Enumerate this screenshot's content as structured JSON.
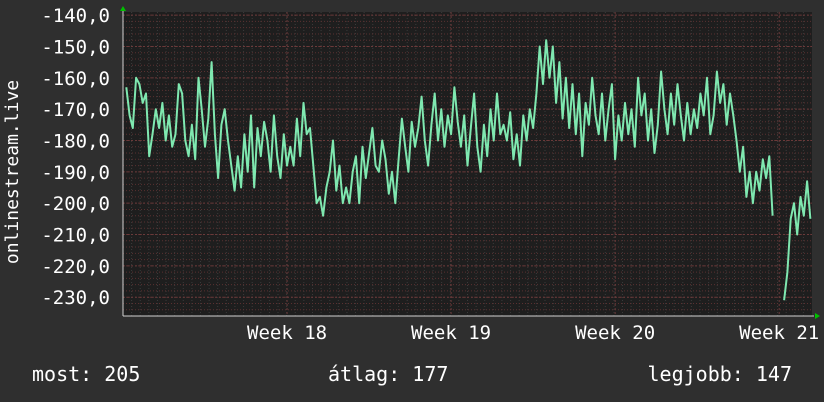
{
  "chart_data": {
    "type": "line",
    "ylabel": "onlinestream.live",
    "yticks": [
      "-140,0",
      "-150,0",
      "-160,0",
      "-170,0",
      "-180,0",
      "-190,0",
      "-200,0",
      "-210,0",
      "-220,0",
      "-230,0"
    ],
    "ytick_values": [
      -140,
      -150,
      -160,
      -170,
      -180,
      -190,
      -200,
      -210,
      -220,
      -230
    ],
    "ylim": [
      -236,
      -139
    ],
    "xticks": [
      "Week 18",
      "Week 19",
      "Week 20",
      "Week 21"
    ],
    "xtick_values": [
      18,
      19,
      20,
      21
    ],
    "xlim": [
      17.0,
      21.2
    ],
    "grid": true,
    "colors": {
      "background": "#2f2f2f",
      "plot_bg": "#1e1e1e",
      "line": "#7fe8b0",
      "grid": "#4a4a4a",
      "grid_minor_red": "#5a3030",
      "arrow": "#00c000"
    },
    "series": [
      {
        "values": [
          [
            17.02,
            -163
          ],
          [
            17.04,
            -172
          ],
          [
            17.06,
            -176
          ],
          [
            17.08,
            -160
          ],
          [
            17.1,
            -162
          ],
          [
            17.12,
            -168
          ],
          [
            17.14,
            -165
          ],
          [
            17.16,
            -185
          ],
          [
            17.18,
            -178
          ],
          [
            17.2,
            -170
          ],
          [
            17.22,
            -176
          ],
          [
            17.24,
            -168
          ],
          [
            17.26,
            -180
          ],
          [
            17.28,
            -172
          ],
          [
            17.3,
            -182
          ],
          [
            17.32,
            -178
          ],
          [
            17.34,
            -162
          ],
          [
            17.36,
            -165
          ],
          [
            17.38,
            -180
          ],
          [
            17.4,
            -185
          ],
          [
            17.42,
            -175
          ],
          [
            17.44,
            -186
          ],
          [
            17.46,
            -160
          ],
          [
            17.48,
            -170
          ],
          [
            17.5,
            -182
          ],
          [
            17.52,
            -173
          ],
          [
            17.54,
            -155
          ],
          [
            17.56,
            -178
          ],
          [
            17.58,
            -192
          ],
          [
            17.6,
            -175
          ],
          [
            17.62,
            -170
          ],
          [
            17.64,
            -180
          ],
          [
            17.66,
            -188
          ],
          [
            17.68,
            -196
          ],
          [
            17.7,
            -185
          ],
          [
            17.72,
            -195
          ],
          [
            17.74,
            -178
          ],
          [
            17.76,
            -190
          ],
          [
            17.78,
            -172
          ],
          [
            17.8,
            -195
          ],
          [
            17.82,
            -176
          ],
          [
            17.84,
            -185
          ],
          [
            17.86,
            -174
          ],
          [
            17.88,
            -180
          ],
          [
            17.9,
            -190
          ],
          [
            17.92,
            -172
          ],
          [
            17.94,
            -185
          ],
          [
            17.96,
            -192
          ],
          [
            17.98,
            -178
          ],
          [
            18.0,
            -188
          ],
          [
            18.02,
            -182
          ],
          [
            18.04,
            -188
          ],
          [
            18.06,
            -173
          ],
          [
            18.08,
            -185
          ],
          [
            18.1,
            -168
          ],
          [
            18.12,
            -178
          ],
          [
            18.14,
            -176
          ],
          [
            18.16,
            -188
          ],
          [
            18.18,
            -200
          ],
          [
            18.2,
            -198
          ],
          [
            18.22,
            -204
          ],
          [
            18.24,
            -195
          ],
          [
            18.26,
            -190
          ],
          [
            18.28,
            -180
          ],
          [
            18.3,
            -196
          ],
          [
            18.32,
            -188
          ],
          [
            18.34,
            -200
          ],
          [
            18.36,
            -195
          ],
          [
            18.38,
            -200
          ],
          [
            18.4,
            -190
          ],
          [
            18.42,
            -185
          ],
          [
            18.44,
            -200
          ],
          [
            18.46,
            -182
          ],
          [
            18.48,
            -192
          ],
          [
            18.5,
            -184
          ],
          [
            18.52,
            -176
          ],
          [
            18.54,
            -188
          ],
          [
            18.56,
            -190
          ],
          [
            18.58,
            -180
          ],
          [
            18.6,
            -186
          ],
          [
            18.62,
            -197
          ],
          [
            18.64,
            -190
          ],
          [
            18.66,
            -200
          ],
          [
            18.68,
            -186
          ],
          [
            18.7,
            -173
          ],
          [
            18.72,
            -182
          ],
          [
            18.74,
            -190
          ],
          [
            18.76,
            -174
          ],
          [
            18.78,
            -182
          ],
          [
            18.8,
            -176
          ],
          [
            18.82,
            -166
          ],
          [
            18.84,
            -180
          ],
          [
            18.86,
            -188
          ],
          [
            18.88,
            -175
          ],
          [
            18.9,
            -165
          ],
          [
            18.92,
            -180
          ],
          [
            18.94,
            -170
          ],
          [
            18.96,
            -182
          ],
          [
            18.98,
            -172
          ],
          [
            19.0,
            -178
          ],
          [
            19.02,
            -163
          ],
          [
            19.04,
            -174
          ],
          [
            19.06,
            -182
          ],
          [
            19.08,
            -172
          ],
          [
            19.1,
            -188
          ],
          [
            19.12,
            -176
          ],
          [
            19.14,
            -165
          ],
          [
            19.16,
            -182
          ],
          [
            19.18,
            -190
          ],
          [
            19.2,
            -175
          ],
          [
            19.22,
            -185
          ],
          [
            19.24,
            -170
          ],
          [
            19.26,
            -180
          ],
          [
            19.28,
            -165
          ],
          [
            19.3,
            -178
          ],
          [
            19.32,
            -175
          ],
          [
            19.34,
            -180
          ],
          [
            19.36,
            -171
          ],
          [
            19.38,
            -186
          ],
          [
            19.4,
            -178
          ],
          [
            19.42,
            -188
          ],
          [
            19.44,
            -172
          ],
          [
            19.46,
            -180
          ],
          [
            19.48,
            -170
          ],
          [
            19.5,
            -176
          ],
          [
            19.52,
            -165
          ],
          [
            19.54,
            -150
          ],
          [
            19.56,
            -162
          ],
          [
            19.58,
            -148
          ],
          [
            19.6,
            -160
          ],
          [
            19.62,
            -150
          ],
          [
            19.64,
            -168
          ],
          [
            19.66,
            -155
          ],
          [
            19.68,
            -173
          ],
          [
            19.7,
            -160
          ],
          [
            19.72,
            -176
          ],
          [
            19.74,
            -162
          ],
          [
            19.76,
            -178
          ],
          [
            19.78,
            -165
          ],
          [
            19.8,
            -185
          ],
          [
            19.82,
            -168
          ],
          [
            19.84,
            -175
          ],
          [
            19.86,
            -160
          ],
          [
            19.88,
            -172
          ],
          [
            19.9,
            -178
          ],
          [
            19.92,
            -165
          ],
          [
            19.94,
            -180
          ],
          [
            19.96,
            -170
          ],
          [
            19.98,
            -162
          ],
          [
            20.0,
            -186
          ],
          [
            20.02,
            -172
          ],
          [
            20.04,
            -180
          ],
          [
            20.06,
            -168
          ],
          [
            20.08,
            -178
          ],
          [
            20.1,
            -170
          ],
          [
            20.12,
            -182
          ],
          [
            20.14,
            -160
          ],
          [
            20.16,
            -172
          ],
          [
            20.18,
            -165
          ],
          [
            20.2,
            -180
          ],
          [
            20.22,
            -170
          ],
          [
            20.24,
            -184
          ],
          [
            20.26,
            -175
          ],
          [
            20.28,
            -158
          ],
          [
            20.3,
            -170
          ],
          [
            20.32,
            -178
          ],
          [
            20.34,
            -165
          ],
          [
            20.36,
            -175
          ],
          [
            20.38,
            -162
          ],
          [
            20.4,
            -172
          ],
          [
            20.42,
            -180
          ],
          [
            20.44,
            -168
          ],
          [
            20.46,
            -178
          ],
          [
            20.48,
            -170
          ],
          [
            20.5,
            -176
          ],
          [
            20.52,
            -165
          ],
          [
            20.54,
            -172
          ],
          [
            20.56,
            -160
          ],
          [
            20.58,
            -178
          ],
          [
            20.6,
            -172
          ],
          [
            20.62,
            -158
          ],
          [
            20.64,
            -168
          ],
          [
            20.66,
            -162
          ],
          [
            20.68,
            -175
          ],
          [
            20.7,
            -165
          ],
          [
            20.72,
            -172
          ],
          [
            20.74,
            -180
          ],
          [
            20.76,
            -190
          ],
          [
            20.78,
            -182
          ],
          [
            20.8,
            -198
          ],
          [
            20.82,
            -190
          ],
          [
            20.84,
            -200
          ],
          [
            20.86,
            -190
          ],
          [
            20.88,
            -196
          ],
          [
            20.9,
            -186
          ],
          [
            20.92,
            -192
          ],
          [
            20.94,
            -185
          ],
          [
            20.96,
            -204
          ],
          [
            21.03,
            -231
          ],
          [
            21.05,
            -222
          ],
          [
            21.07,
            -205
          ],
          [
            21.09,
            -200
          ],
          [
            21.11,
            -210
          ],
          [
            21.13,
            -198
          ],
          [
            21.15,
            -204
          ],
          [
            21.17,
            -193
          ],
          [
            21.19,
            -205
          ]
        ]
      }
    ]
  },
  "stats": {
    "now": "most: 205",
    "avg": "átlag: 177",
    "best": "legjobb: 147"
  }
}
